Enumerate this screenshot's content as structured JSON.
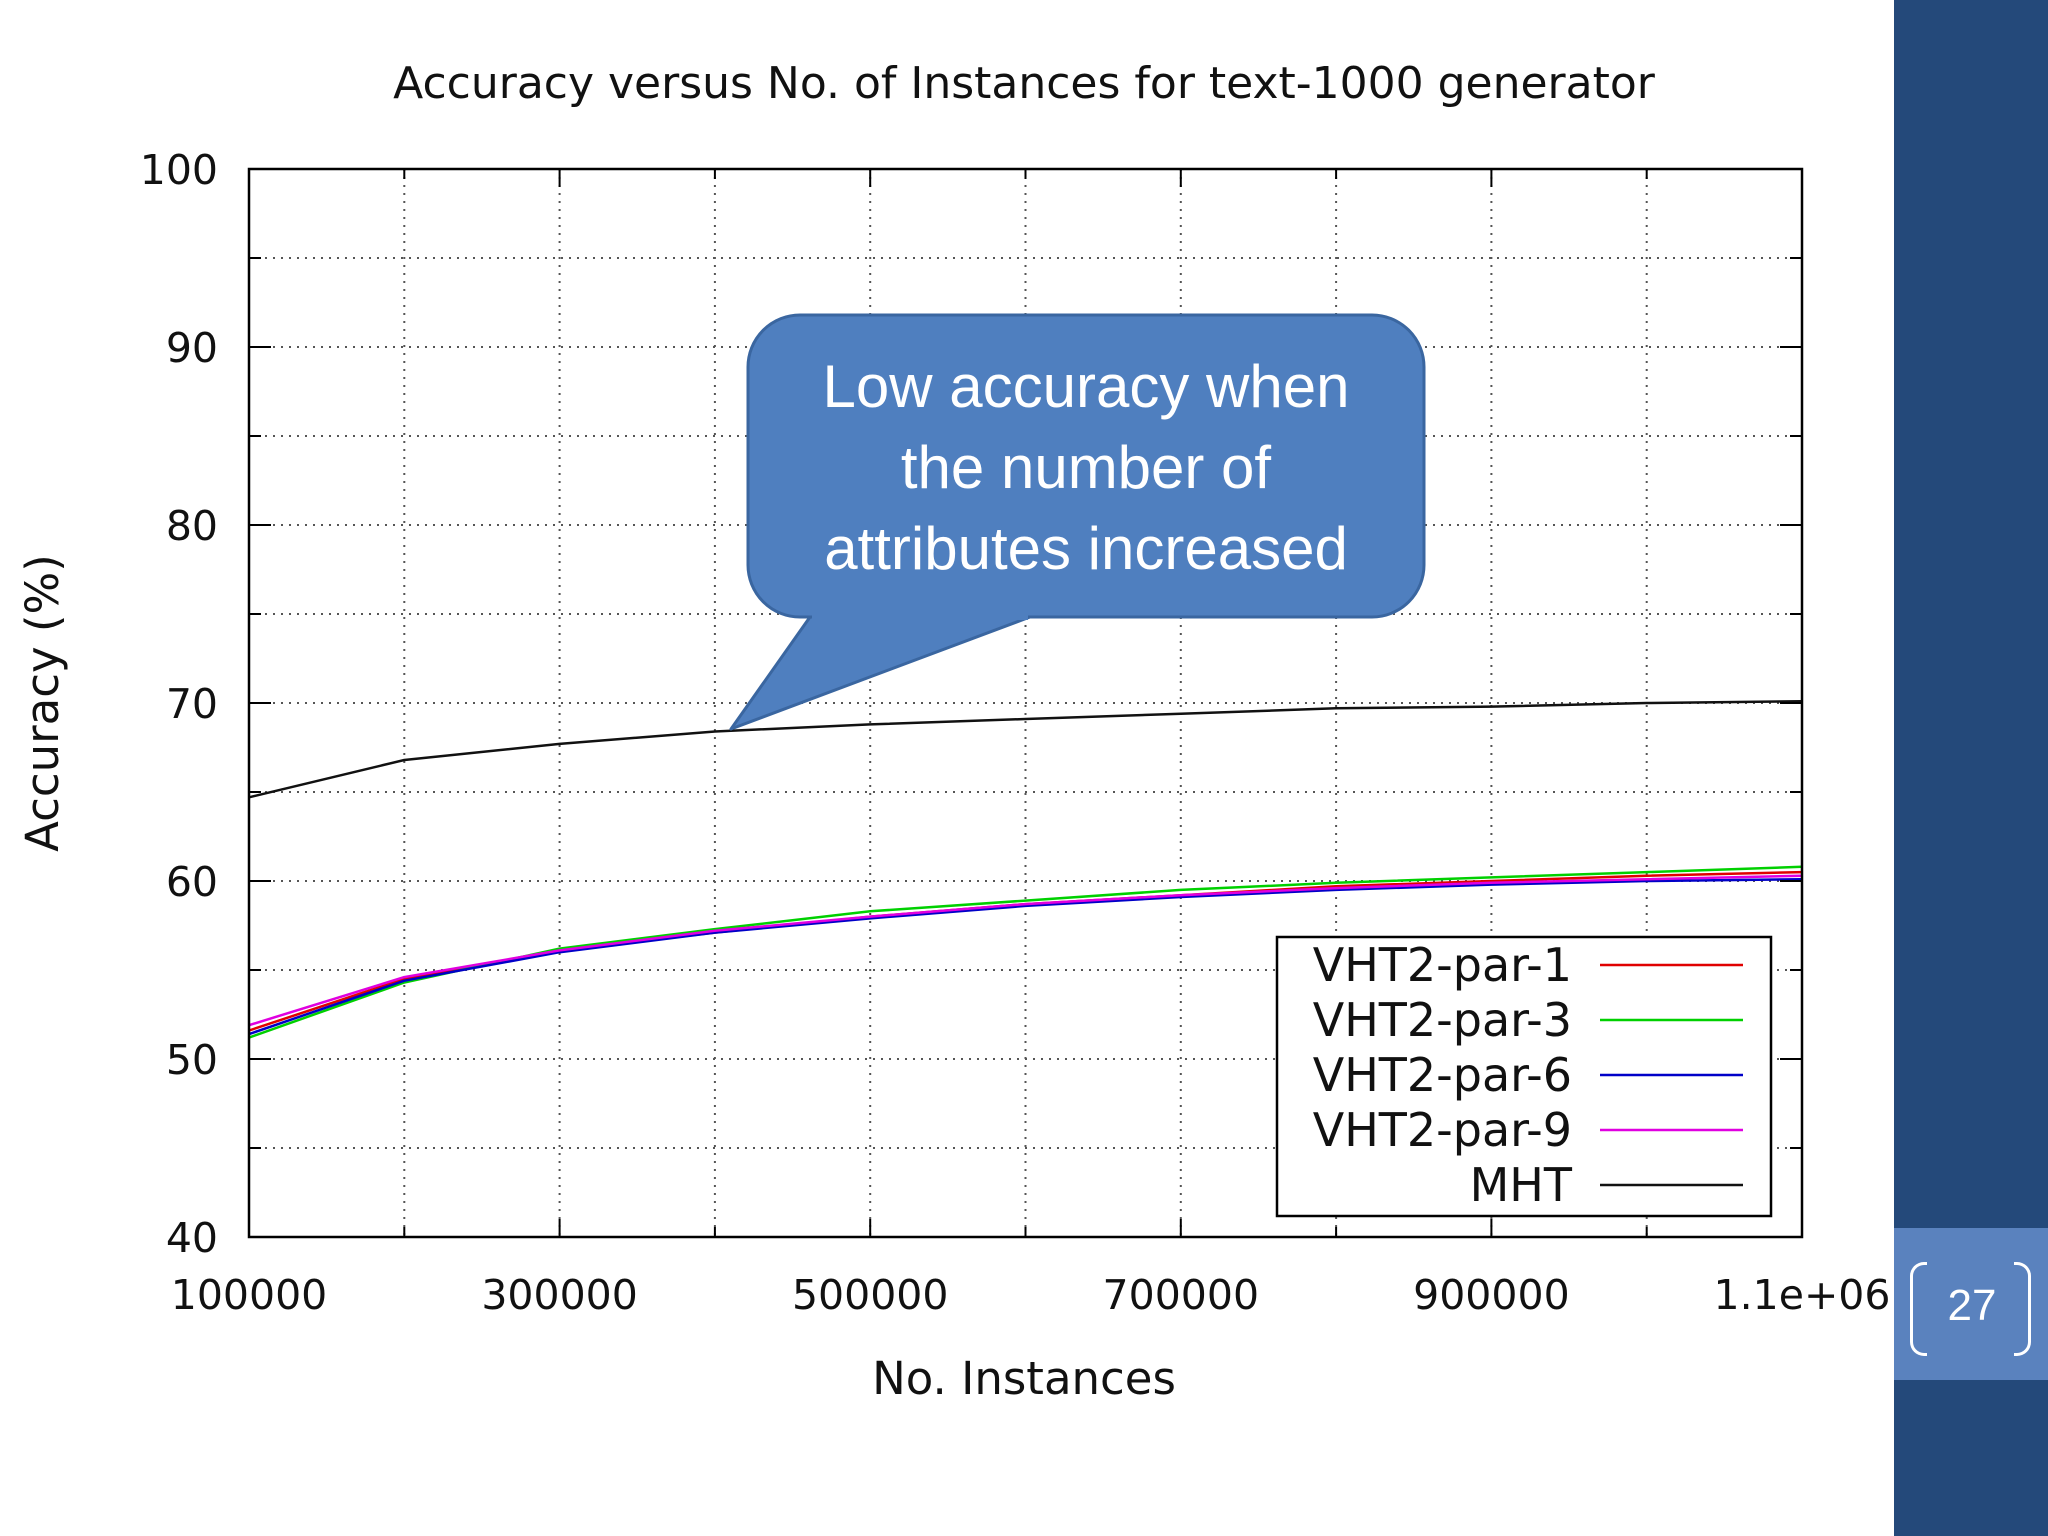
{
  "slide": {
    "page_number": "27"
  },
  "callout": {
    "lines": [
      "Low accuracy when",
      "the number of",
      "attributes increased"
    ],
    "fill": "#4f7fbf",
    "stroke": "#3a66a0"
  },
  "chart_data": {
    "type": "line",
    "title": "Accuracy versus No. of Instances for text-1000 generator",
    "xlabel": "No. Instances",
    "ylabel": "Accuracy (%)",
    "xlim": [
      100000,
      1100000
    ],
    "ylim": [
      40,
      100
    ],
    "x_tick_labels": [
      "100000",
      "300000",
      "500000",
      "700000",
      "900000",
      "1.1e+06"
    ],
    "y_tick_labels": [
      "40",
      "50",
      "60",
      "70",
      "80",
      "90",
      "100"
    ],
    "grid": true,
    "legend_position": "bottom-right",
    "x": [
      100000,
      200000,
      300000,
      400000,
      500000,
      600000,
      700000,
      800000,
      900000,
      1000000,
      1100000
    ],
    "series": [
      {
        "name": "VHT2-par-1",
        "color": "#e00000",
        "values": [
          51.6,
          54.5,
          56.1,
          57.1,
          58.0,
          58.7,
          59.2,
          59.7,
          60.0,
          60.3,
          60.5
        ]
      },
      {
        "name": "VHT2-par-3",
        "color": "#00d000",
        "values": [
          51.2,
          54.3,
          56.2,
          57.3,
          58.3,
          58.9,
          59.5,
          59.9,
          60.2,
          60.5,
          60.8
        ]
      },
      {
        "name": "VHT2-par-6",
        "color": "#0000c8",
        "values": [
          51.4,
          54.4,
          56.0,
          57.1,
          57.9,
          58.6,
          59.1,
          59.5,
          59.8,
          60.0,
          60.1
        ]
      },
      {
        "name": "VHT2-par-9",
        "color": "#e000e0",
        "values": [
          51.9,
          54.6,
          56.1,
          57.2,
          58.0,
          58.7,
          59.2,
          59.6,
          59.9,
          60.1,
          60.3
        ]
      },
      {
        "name": "MHT",
        "color": "#111111",
        "values": [
          64.7,
          66.8,
          67.7,
          68.4,
          68.8,
          69.1,
          69.4,
          69.7,
          69.8,
          70.0,
          70.1
        ]
      }
    ]
  }
}
